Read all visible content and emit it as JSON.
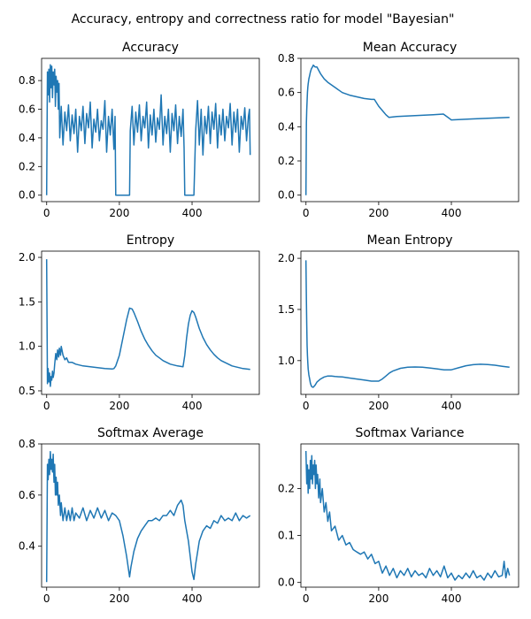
{
  "figure": {
    "suptitle": "Accuracy, entropy and correctness ratio for model \"Bayesian\"",
    "line_color": "#1f77b4"
  },
  "chart_data": [
    {
      "type": "line",
      "title": "Accuracy",
      "xlabel": "",
      "ylabel": "",
      "xlim": [
        -14,
        585
      ],
      "ylim": [
        -0.045,
        0.955
      ],
      "xticks": [
        0,
        200,
        400
      ],
      "yticks": [
        0.0,
        0.2,
        0.4,
        0.6,
        0.8
      ],
      "ytick_labels": [
        "0.0",
        "0.2",
        "0.4",
        "0.6",
        "0.8"
      ],
      "grid": false,
      "series": [
        {
          "x": [
            0,
            2,
            4,
            6,
            8,
            10,
            12,
            14,
            16,
            18,
            20,
            22,
            24,
            26,
            28,
            30,
            32,
            34,
            36,
            40,
            45,
            50,
            55,
            60,
            65,
            70,
            75,
            80,
            85,
            90,
            95,
            100,
            105,
            110,
            115,
            120,
            125,
            130,
            135,
            140,
            145,
            150,
            155,
            160,
            165,
            170,
            175,
            180,
            185,
            188,
            190,
            200,
            210,
            220,
            228,
            230,
            235,
            240,
            245,
            250,
            255,
            260,
            265,
            270,
            275,
            280,
            285,
            290,
            295,
            300,
            305,
            310,
            315,
            320,
            325,
            330,
            335,
            340,
            345,
            350,
            355,
            360,
            365,
            370,
            375,
            378,
            380,
            390,
            400,
            405,
            410,
            415,
            420,
            425,
            430,
            435,
            440,
            445,
            450,
            455,
            460,
            465,
            470,
            475,
            480,
            485,
            490,
            495,
            500,
            505,
            510,
            515,
            520,
            525,
            530,
            535,
            540,
            545,
            550,
            555,
            558,
            560
          ],
          "y": [
            0.0,
            0.86,
            0.7,
            0.88,
            0.65,
            0.91,
            0.75,
            0.9,
            0.68,
            0.86,
            0.77,
            0.88,
            0.62,
            0.83,
            0.72,
            0.8,
            0.6,
            0.78,
            0.4,
            0.62,
            0.35,
            0.58,
            0.45,
            0.63,
            0.38,
            0.56,
            0.43,
            0.6,
            0.3,
            0.55,
            0.45,
            0.62,
            0.36,
            0.57,
            0.47,
            0.65,
            0.33,
            0.53,
            0.44,
            0.6,
            0.38,
            0.52,
            0.46,
            0.66,
            0.3,
            0.55,
            0.42,
            0.6,
            0.32,
            0.55,
            0.0,
            0.0,
            0.0,
            0.0,
            0.0,
            0.45,
            0.62,
            0.35,
            0.58,
            0.44,
            0.63,
            0.38,
            0.55,
            0.47,
            0.65,
            0.33,
            0.56,
            0.42,
            0.6,
            0.37,
            0.54,
            0.46,
            0.7,
            0.35,
            0.55,
            0.43,
            0.6,
            0.3,
            0.57,
            0.45,
            0.63,
            0.36,
            0.55,
            0.41,
            0.6,
            0.33,
            0.0,
            0.0,
            0.0,
            0.0,
            0.45,
            0.66,
            0.35,
            0.6,
            0.28,
            0.55,
            0.43,
            0.62,
            0.36,
            0.58,
            0.46,
            0.64,
            0.33,
            0.56,
            0.42,
            0.6,
            0.38,
            0.55,
            0.47,
            0.64,
            0.35,
            0.58,
            0.44,
            0.6,
            0.3,
            0.55,
            0.46,
            0.61,
            0.38,
            0.55,
            0.6,
            0.28
          ]
        }
      ]
    },
    {
      "type": "line",
      "title": "Mean Accuracy",
      "xlabel": "",
      "ylabel": "",
      "xlim": [
        -14,
        585
      ],
      "ylim": [
        -0.038,
        0.8
      ],
      "xticks": [
        0,
        200,
        400
      ],
      "yticks": [
        0.0,
        0.2,
        0.4,
        0.6,
        0.8
      ],
      "ytick_labels": [
        "0.0",
        "0.2",
        "0.4",
        "0.6",
        "0.8"
      ],
      "grid": false,
      "series": [
        {
          "x": [
            0,
            1,
            2,
            3,
            4,
            5,
            6,
            8,
            10,
            12,
            15,
            18,
            20,
            25,
            30,
            35,
            40,
            50,
            60,
            70,
            80,
            90,
            100,
            120,
            140,
            160,
            180,
            188,
            200,
            220,
            228,
            250,
            300,
            350,
            378,
            400,
            450,
            500,
            560
          ],
          "y": [
            0.0,
            0.42,
            0.5,
            0.55,
            0.6,
            0.63,
            0.65,
            0.68,
            0.7,
            0.72,
            0.74,
            0.75,
            0.76,
            0.75,
            0.75,
            0.73,
            0.71,
            0.68,
            0.66,
            0.645,
            0.63,
            0.615,
            0.6,
            0.585,
            0.575,
            0.565,
            0.56,
            0.56,
            0.52,
            0.47,
            0.455,
            0.46,
            0.465,
            0.47,
            0.474,
            0.44,
            0.445,
            0.45,
            0.455
          ]
        }
      ]
    },
    {
      "type": "line",
      "title": "Entropy",
      "xlabel": "",
      "ylabel": "",
      "xlim": [
        -14,
        585
      ],
      "ylim": [
        0.46,
        2.07
      ],
      "xticks": [
        0,
        200,
        400
      ],
      "yticks": [
        0.5,
        1.0,
        1.5,
        2.0
      ],
      "ytick_labels": [
        "0.5",
        "1.0",
        "1.5",
        "2.0"
      ],
      "grid": false,
      "series": [
        {
          "x": [
            0,
            2,
            4,
            6,
            8,
            10,
            12,
            14,
            16,
            18,
            20,
            22,
            25,
            28,
            30,
            33,
            35,
            38,
            40,
            45,
            50,
            55,
            60,
            70,
            80,
            90,
            100,
            120,
            140,
            160,
            180,
            185,
            190,
            200,
            210,
            220,
            228,
            235,
            240,
            250,
            260,
            270,
            280,
            290,
            300,
            310,
            320,
            340,
            360,
            375,
            380,
            385,
            390,
            395,
            400,
            405,
            410,
            420,
            430,
            440,
            450,
            460,
            470,
            480,
            490,
            500,
            510,
            520,
            530,
            540,
            550,
            560
          ],
          "y": [
            1.98,
            0.58,
            0.75,
            0.6,
            0.7,
            0.55,
            0.66,
            0.62,
            0.72,
            0.65,
            0.7,
            0.8,
            0.92,
            0.85,
            0.96,
            0.88,
            0.98,
            0.9,
            1.0,
            0.9,
            0.85,
            0.87,
            0.82,
            0.82,
            0.8,
            0.79,
            0.78,
            0.77,
            0.76,
            0.75,
            0.745,
            0.75,
            0.78,
            0.9,
            1.1,
            1.3,
            1.43,
            1.42,
            1.38,
            1.28,
            1.17,
            1.08,
            1.01,
            0.95,
            0.9,
            0.87,
            0.84,
            0.8,
            0.78,
            0.77,
            0.9,
            1.1,
            1.25,
            1.35,
            1.4,
            1.38,
            1.33,
            1.2,
            1.1,
            1.02,
            0.96,
            0.91,
            0.87,
            0.84,
            0.82,
            0.8,
            0.78,
            0.77,
            0.76,
            0.75,
            0.745,
            0.74
          ]
        }
      ]
    },
    {
      "type": "line",
      "title": "Mean Entropy",
      "xlabel": "",
      "ylabel": "",
      "xlim": [
        -14,
        585
      ],
      "ylim": [
        0.67,
        2.07
      ],
      "xticks": [
        0,
        200,
        400
      ],
      "yticks": [
        1.0,
        1.5,
        2.0
      ],
      "ytick_labels": [
        "1.0",
        "1.5",
        "2.0"
      ],
      "grid": false,
      "series": [
        {
          "x": [
            0,
            1,
            2,
            3,
            4,
            5,
            6,
            8,
            10,
            12,
            15,
            18,
            20,
            25,
            30,
            40,
            50,
            60,
            70,
            80,
            100,
            120,
            140,
            160,
            180,
            200,
            210,
            220,
            230,
            240,
            260,
            280,
            300,
            320,
            340,
            360,
            380,
            400,
            420,
            440,
            460,
            480,
            500,
            520,
            540,
            560
          ],
          "y": [
            1.98,
            1.6,
            1.35,
            1.15,
            1.05,
            0.98,
            0.92,
            0.86,
            0.82,
            0.78,
            0.75,
            0.74,
            0.74,
            0.76,
            0.79,
            0.82,
            0.84,
            0.85,
            0.85,
            0.845,
            0.84,
            0.83,
            0.82,
            0.81,
            0.8,
            0.8,
            0.82,
            0.85,
            0.88,
            0.9,
            0.925,
            0.935,
            0.938,
            0.935,
            0.928,
            0.92,
            0.91,
            0.91,
            0.93,
            0.95,
            0.96,
            0.965,
            0.962,
            0.955,
            0.945,
            0.935
          ]
        }
      ]
    },
    {
      "type": "line",
      "title": "Softmax Average",
      "xlabel": "",
      "ylabel": "",
      "xlim": [
        -14,
        585
      ],
      "ylim": [
        0.24,
        0.8
      ],
      "xticks": [
        0,
        200,
        400
      ],
      "yticks": [
        0.4,
        0.6,
        0.8
      ],
      "ytick_labels": [
        "0.4",
        "0.6",
        "0.8"
      ],
      "grid": false,
      "series": [
        {
          "x": [
            0,
            2,
            4,
            6,
            8,
            10,
            12,
            14,
            16,
            18,
            20,
            22,
            24,
            26,
            28,
            30,
            32,
            35,
            38,
            40,
            45,
            50,
            55,
            60,
            65,
            70,
            75,
            80,
            90,
            100,
            110,
            120,
            130,
            140,
            150,
            160,
            170,
            180,
            190,
            200,
            210,
            220,
            228,
            232,
            240,
            250,
            260,
            270,
            280,
            290,
            300,
            310,
            320,
            330,
            340,
            350,
            360,
            370,
            375,
            380,
            390,
            400,
            405,
            410,
            420,
            430,
            440,
            450,
            460,
            470,
            480,
            490,
            500,
            510,
            520,
            530,
            540,
            550,
            560
          ],
          "y": [
            0.26,
            0.72,
            0.66,
            0.74,
            0.68,
            0.77,
            0.7,
            0.74,
            0.69,
            0.76,
            0.65,
            0.72,
            0.6,
            0.67,
            0.6,
            0.65,
            0.56,
            0.6,
            0.52,
            0.57,
            0.5,
            0.55,
            0.5,
            0.54,
            0.5,
            0.55,
            0.5,
            0.53,
            0.51,
            0.55,
            0.5,
            0.54,
            0.51,
            0.55,
            0.51,
            0.54,
            0.5,
            0.53,
            0.52,
            0.5,
            0.44,
            0.36,
            0.28,
            0.32,
            0.38,
            0.43,
            0.46,
            0.48,
            0.5,
            0.5,
            0.51,
            0.5,
            0.52,
            0.52,
            0.54,
            0.52,
            0.56,
            0.58,
            0.56,
            0.5,
            0.42,
            0.3,
            0.27,
            0.33,
            0.42,
            0.46,
            0.48,
            0.47,
            0.5,
            0.49,
            0.52,
            0.5,
            0.51,
            0.5,
            0.53,
            0.5,
            0.52,
            0.51,
            0.52
          ]
        }
      ]
    },
    {
      "type": "line",
      "title": "Softmax Variance",
      "xlabel": "",
      "ylabel": "",
      "xlim": [
        -14,
        585
      ],
      "ylim": [
        -0.01,
        0.295
      ],
      "xticks": [
        0,
        200,
        400
      ],
      "yticks": [
        0.0,
        0.1,
        0.2
      ],
      "ytick_labels": [
        "0.0",
        "0.1",
        "0.2"
      ],
      "grid": false,
      "series": [
        {
          "x": [
            0,
            2,
            4,
            6,
            8,
            10,
            12,
            14,
            16,
            18,
            20,
            22,
            24,
            26,
            28,
            30,
            32,
            35,
            38,
            40,
            45,
            50,
            55,
            60,
            65,
            70,
            80,
            90,
            100,
            110,
            120,
            130,
            140,
            150,
            160,
            170,
            180,
            190,
            200,
            210,
            220,
            230,
            240,
            250,
            260,
            270,
            280,
            290,
            300,
            310,
            320,
            330,
            340,
            350,
            360,
            370,
            380,
            390,
            400,
            410,
            420,
            430,
            440,
            450,
            460,
            470,
            480,
            490,
            500,
            510,
            520,
            530,
            540,
            545,
            550,
            555,
            560
          ],
          "y": [
            0.28,
            0.21,
            0.25,
            0.19,
            0.24,
            0.2,
            0.26,
            0.22,
            0.27,
            0.21,
            0.25,
            0.23,
            0.26,
            0.2,
            0.25,
            0.21,
            0.23,
            0.18,
            0.22,
            0.17,
            0.2,
            0.15,
            0.17,
            0.13,
            0.15,
            0.11,
            0.12,
            0.09,
            0.1,
            0.08,
            0.085,
            0.07,
            0.065,
            0.06,
            0.065,
            0.05,
            0.06,
            0.04,
            0.045,
            0.02,
            0.035,
            0.015,
            0.03,
            0.01,
            0.025,
            0.015,
            0.03,
            0.012,
            0.025,
            0.015,
            0.02,
            0.01,
            0.03,
            0.015,
            0.025,
            0.012,
            0.035,
            0.01,
            0.02,
            0.005,
            0.015,
            0.008,
            0.02,
            0.01,
            0.025,
            0.01,
            0.015,
            0.005,
            0.02,
            0.01,
            0.025,
            0.012,
            0.015,
            0.045,
            0.01,
            0.03,
            0.015
          ]
        }
      ]
    }
  ]
}
